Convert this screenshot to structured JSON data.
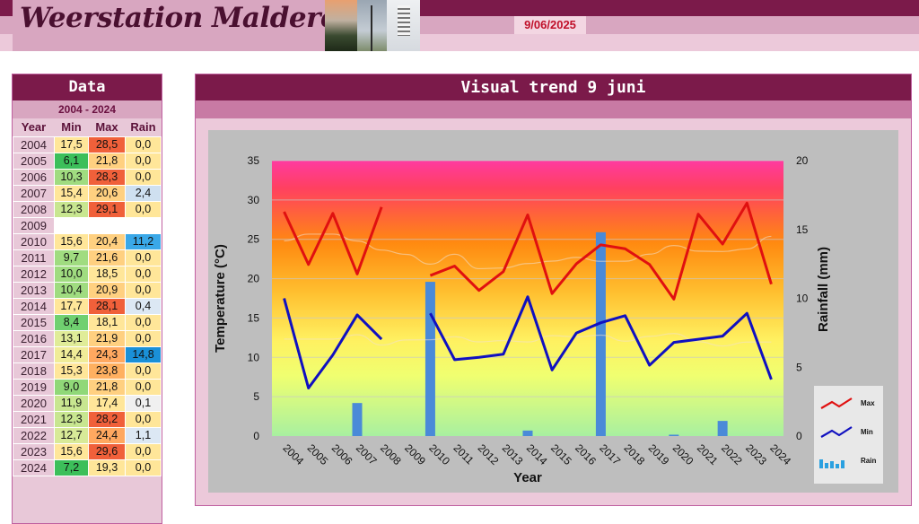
{
  "header": {
    "title": "Weerstation Malderen",
    "date": "9/06/2025"
  },
  "table": {
    "title": "Data",
    "range": "2004 - 2024",
    "columns": [
      "Year",
      "Min",
      "Max",
      "Rain"
    ],
    "rows": [
      {
        "year": "2004",
        "min": "17,5",
        "max": "28,5",
        "rain": "0,0",
        "c": [
          "#ffe699",
          "#f0603a",
          "#ffe699"
        ]
      },
      {
        "year": "2005",
        "min": "6,1",
        "max": "21,8",
        "rain": "0,0",
        "c": [
          "#3cbf5a",
          "#ffd080",
          "#ffe699"
        ]
      },
      {
        "year": "2006",
        "min": "10,3",
        "max": "28,3",
        "rain": "0,0",
        "c": [
          "#a0dc80",
          "#f0603a",
          "#ffe699"
        ]
      },
      {
        "year": "2007",
        "min": "15,4",
        "max": "20,6",
        "rain": "2,4",
        "c": [
          "#ffe699",
          "#ffd080",
          "#cfe0f0"
        ]
      },
      {
        "year": "2008",
        "min": "12,3",
        "max": "29,1",
        "rain": "0,0",
        "c": [
          "#c8e690",
          "#f0603a",
          "#ffe699"
        ]
      },
      {
        "year": "2009",
        "min": "",
        "max": "",
        "rain": "",
        "c": [
          "#ffffff",
          "#ffffff",
          "#ffffff"
        ]
      },
      {
        "year": "2010",
        "min": "15,6",
        "max": "20,4",
        "rain": "11,2",
        "c": [
          "#ffe699",
          "#ffd080",
          "#3aa8e8"
        ]
      },
      {
        "year": "2011",
        "min": "9,7",
        "max": "21,6",
        "rain": "0,0",
        "c": [
          "#a0dc80",
          "#ffd080",
          "#ffe699"
        ]
      },
      {
        "year": "2012",
        "min": "10,0",
        "max": "18,5",
        "rain": "0,0",
        "c": [
          "#a0dc80",
          "#ffe699",
          "#ffe699"
        ]
      },
      {
        "year": "2013",
        "min": "10,4",
        "max": "20,9",
        "rain": "0,0",
        "c": [
          "#a0dc80",
          "#ffd080",
          "#ffe699"
        ]
      },
      {
        "year": "2014",
        "min": "17,7",
        "max": "28,1",
        "rain": "0,4",
        "c": [
          "#ffe699",
          "#f0603a",
          "#dce8f4"
        ]
      },
      {
        "year": "2015",
        "min": "8,4",
        "max": "18,1",
        "rain": "0,0",
        "c": [
          "#70d070",
          "#ffe699",
          "#ffe699"
        ]
      },
      {
        "year": "2016",
        "min": "13,1",
        "max": "21,9",
        "rain": "0,0",
        "c": [
          "#e0ec98",
          "#ffd080",
          "#ffe699"
        ]
      },
      {
        "year": "2017",
        "min": "14,4",
        "max": "24,3",
        "rain": "14,8",
        "c": [
          "#f0ec98",
          "#ffa860",
          "#1a90d8"
        ]
      },
      {
        "year": "2018",
        "min": "15,3",
        "max": "23,8",
        "rain": "0,0",
        "c": [
          "#ffe699",
          "#ffb060",
          "#ffe699"
        ]
      },
      {
        "year": "2019",
        "min": "9,0",
        "max": "21,8",
        "rain": "0,0",
        "c": [
          "#90d878",
          "#ffd080",
          "#ffe699"
        ]
      },
      {
        "year": "2020",
        "min": "11,9",
        "max": "17,4",
        "rain": "0,1",
        "c": [
          "#c8e690",
          "#ffe699",
          "#f0f0f0"
        ]
      },
      {
        "year": "2021",
        "min": "12,3",
        "max": "28,2",
        "rain": "0,0",
        "c": [
          "#c8e690",
          "#f0603a",
          "#ffe699"
        ]
      },
      {
        "year": "2022",
        "min": "12,7",
        "max": "24,4",
        "rain": "1,1",
        "c": [
          "#d8ea98",
          "#ffa860",
          "#dce8f4"
        ]
      },
      {
        "year": "2023",
        "min": "15,6",
        "max": "29,6",
        "rain": "0,0",
        "c": [
          "#ffe699",
          "#f0603a",
          "#ffe699"
        ]
      },
      {
        "year": "2024",
        "min": "7,2",
        "max": "19,3",
        "rain": "0,0",
        "c": [
          "#3cbf5a",
          "#ffe699",
          "#ffe699"
        ]
      }
    ]
  },
  "chart_panel_title": "Visual trend 9 juni",
  "chart_data": {
    "type": "line",
    "title": "",
    "xlabel": "Year",
    "ylabel": "Temperature (°C)",
    "y2label": "Rainfall (mm)",
    "categories": [
      "2004",
      "2005",
      "2006",
      "2007",
      "2008",
      "2009",
      "2010",
      "2011",
      "2012",
      "2013",
      "2014",
      "2015",
      "2016",
      "2017",
      "2018",
      "2019",
      "2020",
      "2021",
      "2022",
      "2023",
      "2024"
    ],
    "ylim": [
      0,
      35
    ],
    "y2lim": [
      0,
      20
    ],
    "yticks": [
      0,
      5,
      10,
      15,
      20,
      25,
      30,
      35
    ],
    "y2ticks": [
      0,
      5,
      10,
      15,
      20
    ],
    "series": [
      {
        "name": "Max",
        "color": "#e01010",
        "axis": "left",
        "values": [
          28.5,
          21.8,
          28.3,
          20.6,
          29.1,
          null,
          20.4,
          21.6,
          18.5,
          20.9,
          28.1,
          18.1,
          21.9,
          24.3,
          23.8,
          21.8,
          17.4,
          28.2,
          24.4,
          29.6,
          19.3
        ]
      },
      {
        "name": "Min",
        "color": "#1010c0",
        "axis": "left",
        "values": [
          17.5,
          6.1,
          10.3,
          15.4,
          12.3,
          null,
          15.6,
          9.7,
          10.0,
          10.4,
          17.7,
          8.4,
          13.1,
          14.4,
          15.3,
          9.0,
          11.9,
          12.3,
          12.7,
          15.6,
          7.2
        ]
      },
      {
        "name": "Rain",
        "color": "#4a8ad8",
        "axis": "right",
        "type": "bar",
        "values": [
          0.0,
          0.0,
          0.0,
          2.4,
          0.0,
          null,
          11.2,
          0.0,
          0.0,
          0.0,
          0.4,
          0.0,
          0.0,
          14.8,
          0.0,
          0.0,
          0.1,
          0.0,
          1.1,
          0.0,
          0.0
        ]
      }
    ],
    "legend": {
      "position": "right",
      "items": [
        "Max",
        "Min",
        "Rain"
      ]
    },
    "grid": true
  }
}
